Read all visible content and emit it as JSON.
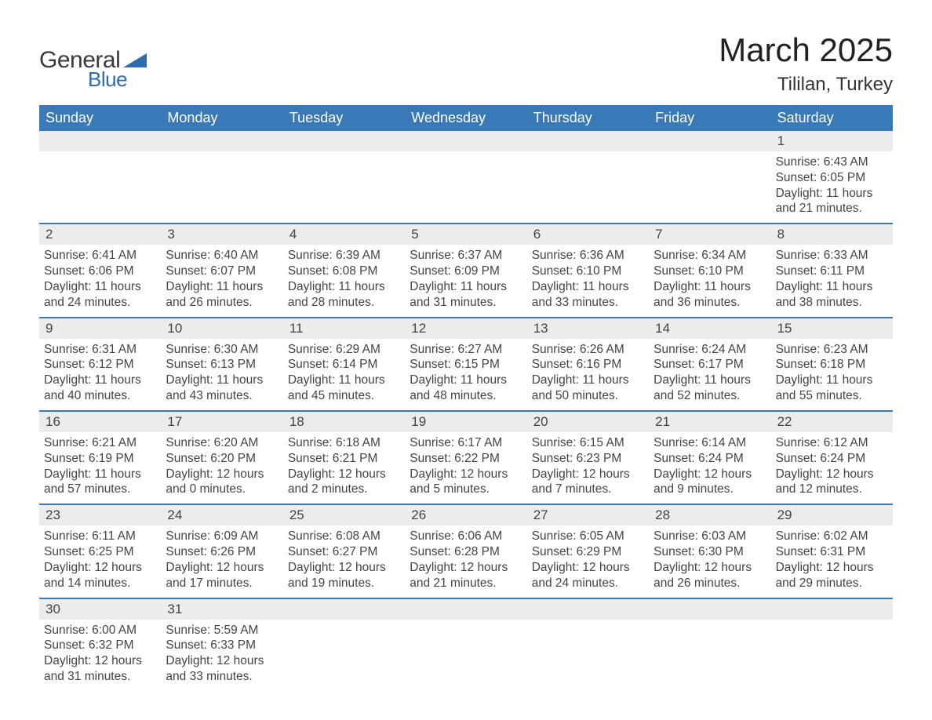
{
  "logo": {
    "text_general": "General",
    "text_blue": "Blue",
    "triangle_color": "#2f6bad"
  },
  "title": "March 2025",
  "location": "Tililan, Turkey",
  "header_bg": "#3a79b7",
  "header_text_color": "#ffffff",
  "daynum_bg": "#ececec",
  "week_border_color": "#3a79b7",
  "text_color": "#444444",
  "day_headers": [
    "Sunday",
    "Monday",
    "Tuesday",
    "Wednesday",
    "Thursday",
    "Friday",
    "Saturday"
  ],
  "weeks": [
    {
      "days": [
        {
          "num": "",
          "lines": []
        },
        {
          "num": "",
          "lines": []
        },
        {
          "num": "",
          "lines": []
        },
        {
          "num": "",
          "lines": []
        },
        {
          "num": "",
          "lines": []
        },
        {
          "num": "",
          "lines": []
        },
        {
          "num": "1",
          "lines": [
            "Sunrise: 6:43 AM",
            "Sunset: 6:05 PM",
            "Daylight: 11 hours",
            "and 21 minutes."
          ]
        }
      ]
    },
    {
      "days": [
        {
          "num": "2",
          "lines": [
            "Sunrise: 6:41 AM",
            "Sunset: 6:06 PM",
            "Daylight: 11 hours",
            "and 24 minutes."
          ]
        },
        {
          "num": "3",
          "lines": [
            "Sunrise: 6:40 AM",
            "Sunset: 6:07 PM",
            "Daylight: 11 hours",
            "and 26 minutes."
          ]
        },
        {
          "num": "4",
          "lines": [
            "Sunrise: 6:39 AM",
            "Sunset: 6:08 PM",
            "Daylight: 11 hours",
            "and 28 minutes."
          ]
        },
        {
          "num": "5",
          "lines": [
            "Sunrise: 6:37 AM",
            "Sunset: 6:09 PM",
            "Daylight: 11 hours",
            "and 31 minutes."
          ]
        },
        {
          "num": "6",
          "lines": [
            "Sunrise: 6:36 AM",
            "Sunset: 6:10 PM",
            "Daylight: 11 hours",
            "and 33 minutes."
          ]
        },
        {
          "num": "7",
          "lines": [
            "Sunrise: 6:34 AM",
            "Sunset: 6:10 PM",
            "Daylight: 11 hours",
            "and 36 minutes."
          ]
        },
        {
          "num": "8",
          "lines": [
            "Sunrise: 6:33 AM",
            "Sunset: 6:11 PM",
            "Daylight: 11 hours",
            "and 38 minutes."
          ]
        }
      ]
    },
    {
      "days": [
        {
          "num": "9",
          "lines": [
            "Sunrise: 6:31 AM",
            "Sunset: 6:12 PM",
            "Daylight: 11 hours",
            "and 40 minutes."
          ]
        },
        {
          "num": "10",
          "lines": [
            "Sunrise: 6:30 AM",
            "Sunset: 6:13 PM",
            "Daylight: 11 hours",
            "and 43 minutes."
          ]
        },
        {
          "num": "11",
          "lines": [
            "Sunrise: 6:29 AM",
            "Sunset: 6:14 PM",
            "Daylight: 11 hours",
            "and 45 minutes."
          ]
        },
        {
          "num": "12",
          "lines": [
            "Sunrise: 6:27 AM",
            "Sunset: 6:15 PM",
            "Daylight: 11 hours",
            "and 48 minutes."
          ]
        },
        {
          "num": "13",
          "lines": [
            "Sunrise: 6:26 AM",
            "Sunset: 6:16 PM",
            "Daylight: 11 hours",
            "and 50 minutes."
          ]
        },
        {
          "num": "14",
          "lines": [
            "Sunrise: 6:24 AM",
            "Sunset: 6:17 PM",
            "Daylight: 11 hours",
            "and 52 minutes."
          ]
        },
        {
          "num": "15",
          "lines": [
            "Sunrise: 6:23 AM",
            "Sunset: 6:18 PM",
            "Daylight: 11 hours",
            "and 55 minutes."
          ]
        }
      ]
    },
    {
      "days": [
        {
          "num": "16",
          "lines": [
            "Sunrise: 6:21 AM",
            "Sunset: 6:19 PM",
            "Daylight: 11 hours",
            "and 57 minutes."
          ]
        },
        {
          "num": "17",
          "lines": [
            "Sunrise: 6:20 AM",
            "Sunset: 6:20 PM",
            "Daylight: 12 hours",
            "and 0 minutes."
          ]
        },
        {
          "num": "18",
          "lines": [
            "Sunrise: 6:18 AM",
            "Sunset: 6:21 PM",
            "Daylight: 12 hours",
            "and 2 minutes."
          ]
        },
        {
          "num": "19",
          "lines": [
            "Sunrise: 6:17 AM",
            "Sunset: 6:22 PM",
            "Daylight: 12 hours",
            "and 5 minutes."
          ]
        },
        {
          "num": "20",
          "lines": [
            "Sunrise: 6:15 AM",
            "Sunset: 6:23 PM",
            "Daylight: 12 hours",
            "and 7 minutes."
          ]
        },
        {
          "num": "21",
          "lines": [
            "Sunrise: 6:14 AM",
            "Sunset: 6:24 PM",
            "Daylight: 12 hours",
            "and 9 minutes."
          ]
        },
        {
          "num": "22",
          "lines": [
            "Sunrise: 6:12 AM",
            "Sunset: 6:24 PM",
            "Daylight: 12 hours",
            "and 12 minutes."
          ]
        }
      ]
    },
    {
      "days": [
        {
          "num": "23",
          "lines": [
            "Sunrise: 6:11 AM",
            "Sunset: 6:25 PM",
            "Daylight: 12 hours",
            "and 14 minutes."
          ]
        },
        {
          "num": "24",
          "lines": [
            "Sunrise: 6:09 AM",
            "Sunset: 6:26 PM",
            "Daylight: 12 hours",
            "and 17 minutes."
          ]
        },
        {
          "num": "25",
          "lines": [
            "Sunrise: 6:08 AM",
            "Sunset: 6:27 PM",
            "Daylight: 12 hours",
            "and 19 minutes."
          ]
        },
        {
          "num": "26",
          "lines": [
            "Sunrise: 6:06 AM",
            "Sunset: 6:28 PM",
            "Daylight: 12 hours",
            "and 21 minutes."
          ]
        },
        {
          "num": "27",
          "lines": [
            "Sunrise: 6:05 AM",
            "Sunset: 6:29 PM",
            "Daylight: 12 hours",
            "and 24 minutes."
          ]
        },
        {
          "num": "28",
          "lines": [
            "Sunrise: 6:03 AM",
            "Sunset: 6:30 PM",
            "Daylight: 12 hours",
            "and 26 minutes."
          ]
        },
        {
          "num": "29",
          "lines": [
            "Sunrise: 6:02 AM",
            "Sunset: 6:31 PM",
            "Daylight: 12 hours",
            "and 29 minutes."
          ]
        }
      ]
    },
    {
      "days": [
        {
          "num": "30",
          "lines": [
            "Sunrise: 6:00 AM",
            "Sunset: 6:32 PM",
            "Daylight: 12 hours",
            "and 31 minutes."
          ]
        },
        {
          "num": "31",
          "lines": [
            "Sunrise: 5:59 AM",
            "Sunset: 6:33 PM",
            "Daylight: 12 hours",
            "and 33 minutes."
          ]
        },
        {
          "num": "",
          "lines": []
        },
        {
          "num": "",
          "lines": []
        },
        {
          "num": "",
          "lines": []
        },
        {
          "num": "",
          "lines": []
        },
        {
          "num": "",
          "lines": []
        }
      ]
    }
  ]
}
